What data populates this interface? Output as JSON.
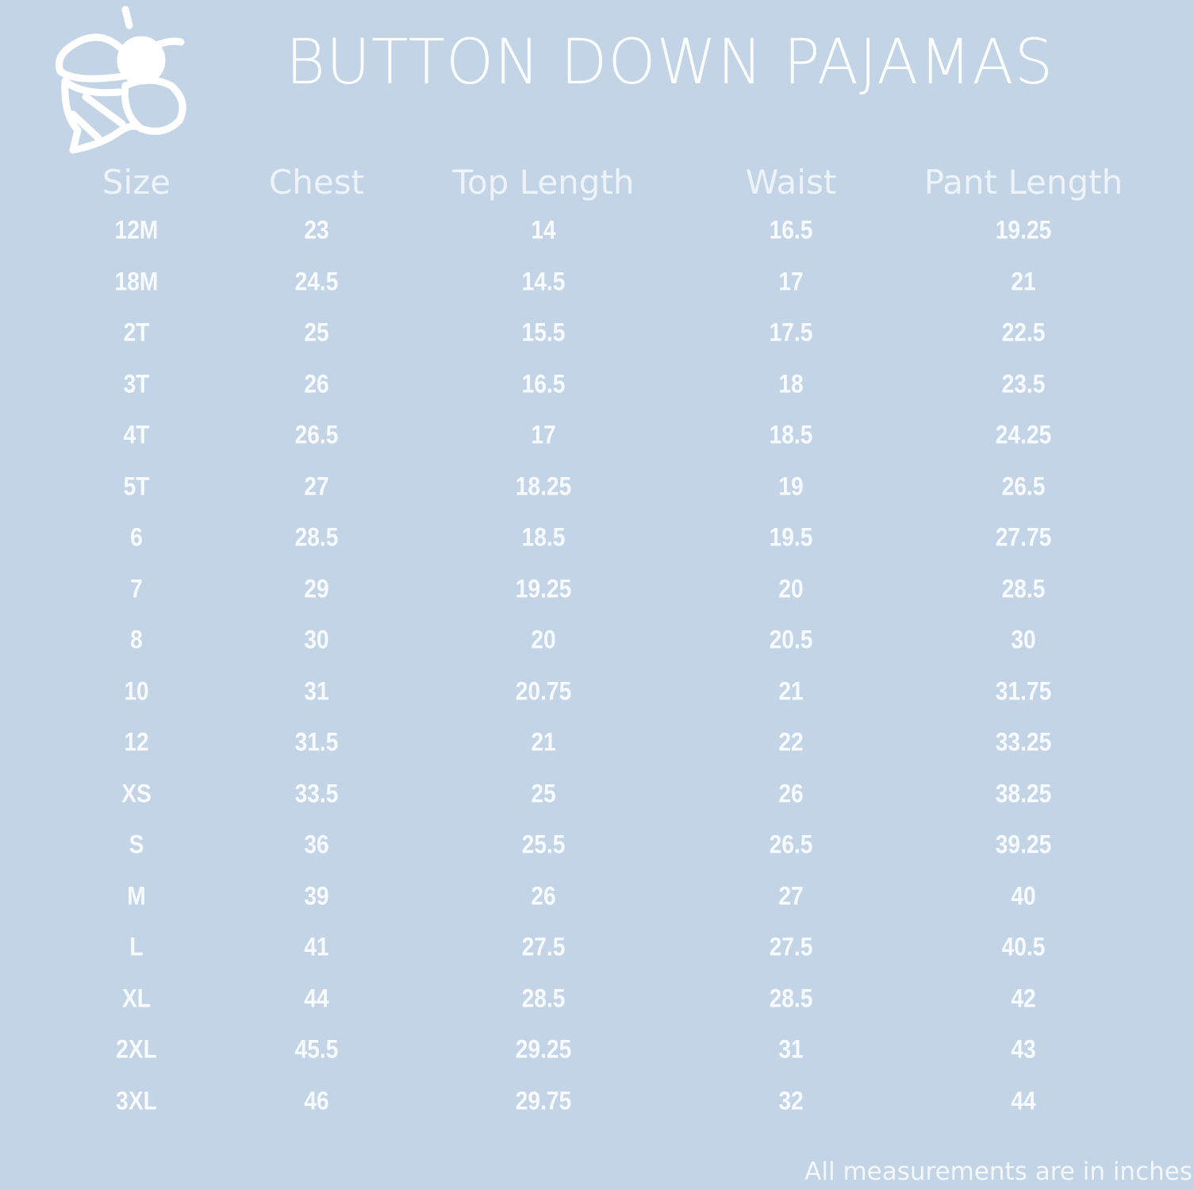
{
  "title": "BUTTON DOWN PAJAMAS",
  "colors": {
    "background": "#c3d4e6",
    "text": "#ffffff"
  },
  "logo": {
    "icon": "bee-icon"
  },
  "table": {
    "headers": [
      "Size",
      "Chest",
      "Top Length",
      "Waist",
      "Pant Length"
    ],
    "rows": [
      [
        "12M",
        "23",
        "14",
        "16.5",
        "19.25"
      ],
      [
        "18M",
        "24.5",
        "14.5",
        "17",
        "21"
      ],
      [
        "2T",
        "25",
        "15.5",
        "17.5",
        "22.5"
      ],
      [
        "3T",
        "26",
        "16.5",
        "18",
        "23.5"
      ],
      [
        "4T",
        "26.5",
        "17",
        "18.5",
        "24.25"
      ],
      [
        "5T",
        "27",
        "18.25",
        "19",
        "26.5"
      ],
      [
        "6",
        "28.5",
        "18.5",
        "19.5",
        "27.75"
      ],
      [
        "7",
        "29",
        "19.25",
        "20",
        "28.5"
      ],
      [
        "8",
        "30",
        "20",
        "20.5",
        "30"
      ],
      [
        "10",
        "31",
        "20.75",
        "21",
        "31.75"
      ],
      [
        "12",
        "31.5",
        "21",
        "22",
        "33.25"
      ],
      [
        "XS",
        "33.5",
        "25",
        "26",
        "38.25"
      ],
      [
        "S",
        "36",
        "25.5",
        "26.5",
        "39.25"
      ],
      [
        "M",
        "39",
        "26",
        "27",
        "40"
      ],
      [
        "L",
        "41",
        "27.5",
        "27.5",
        "40.5"
      ],
      [
        "XL",
        "44",
        "28.5",
        "28.5",
        "42"
      ],
      [
        "2XL",
        "45.5",
        "29.25",
        "31",
        "43"
      ],
      [
        "3XL",
        "46",
        "29.75",
        "32",
        "44"
      ]
    ]
  },
  "footer": "All measurements are in inches"
}
